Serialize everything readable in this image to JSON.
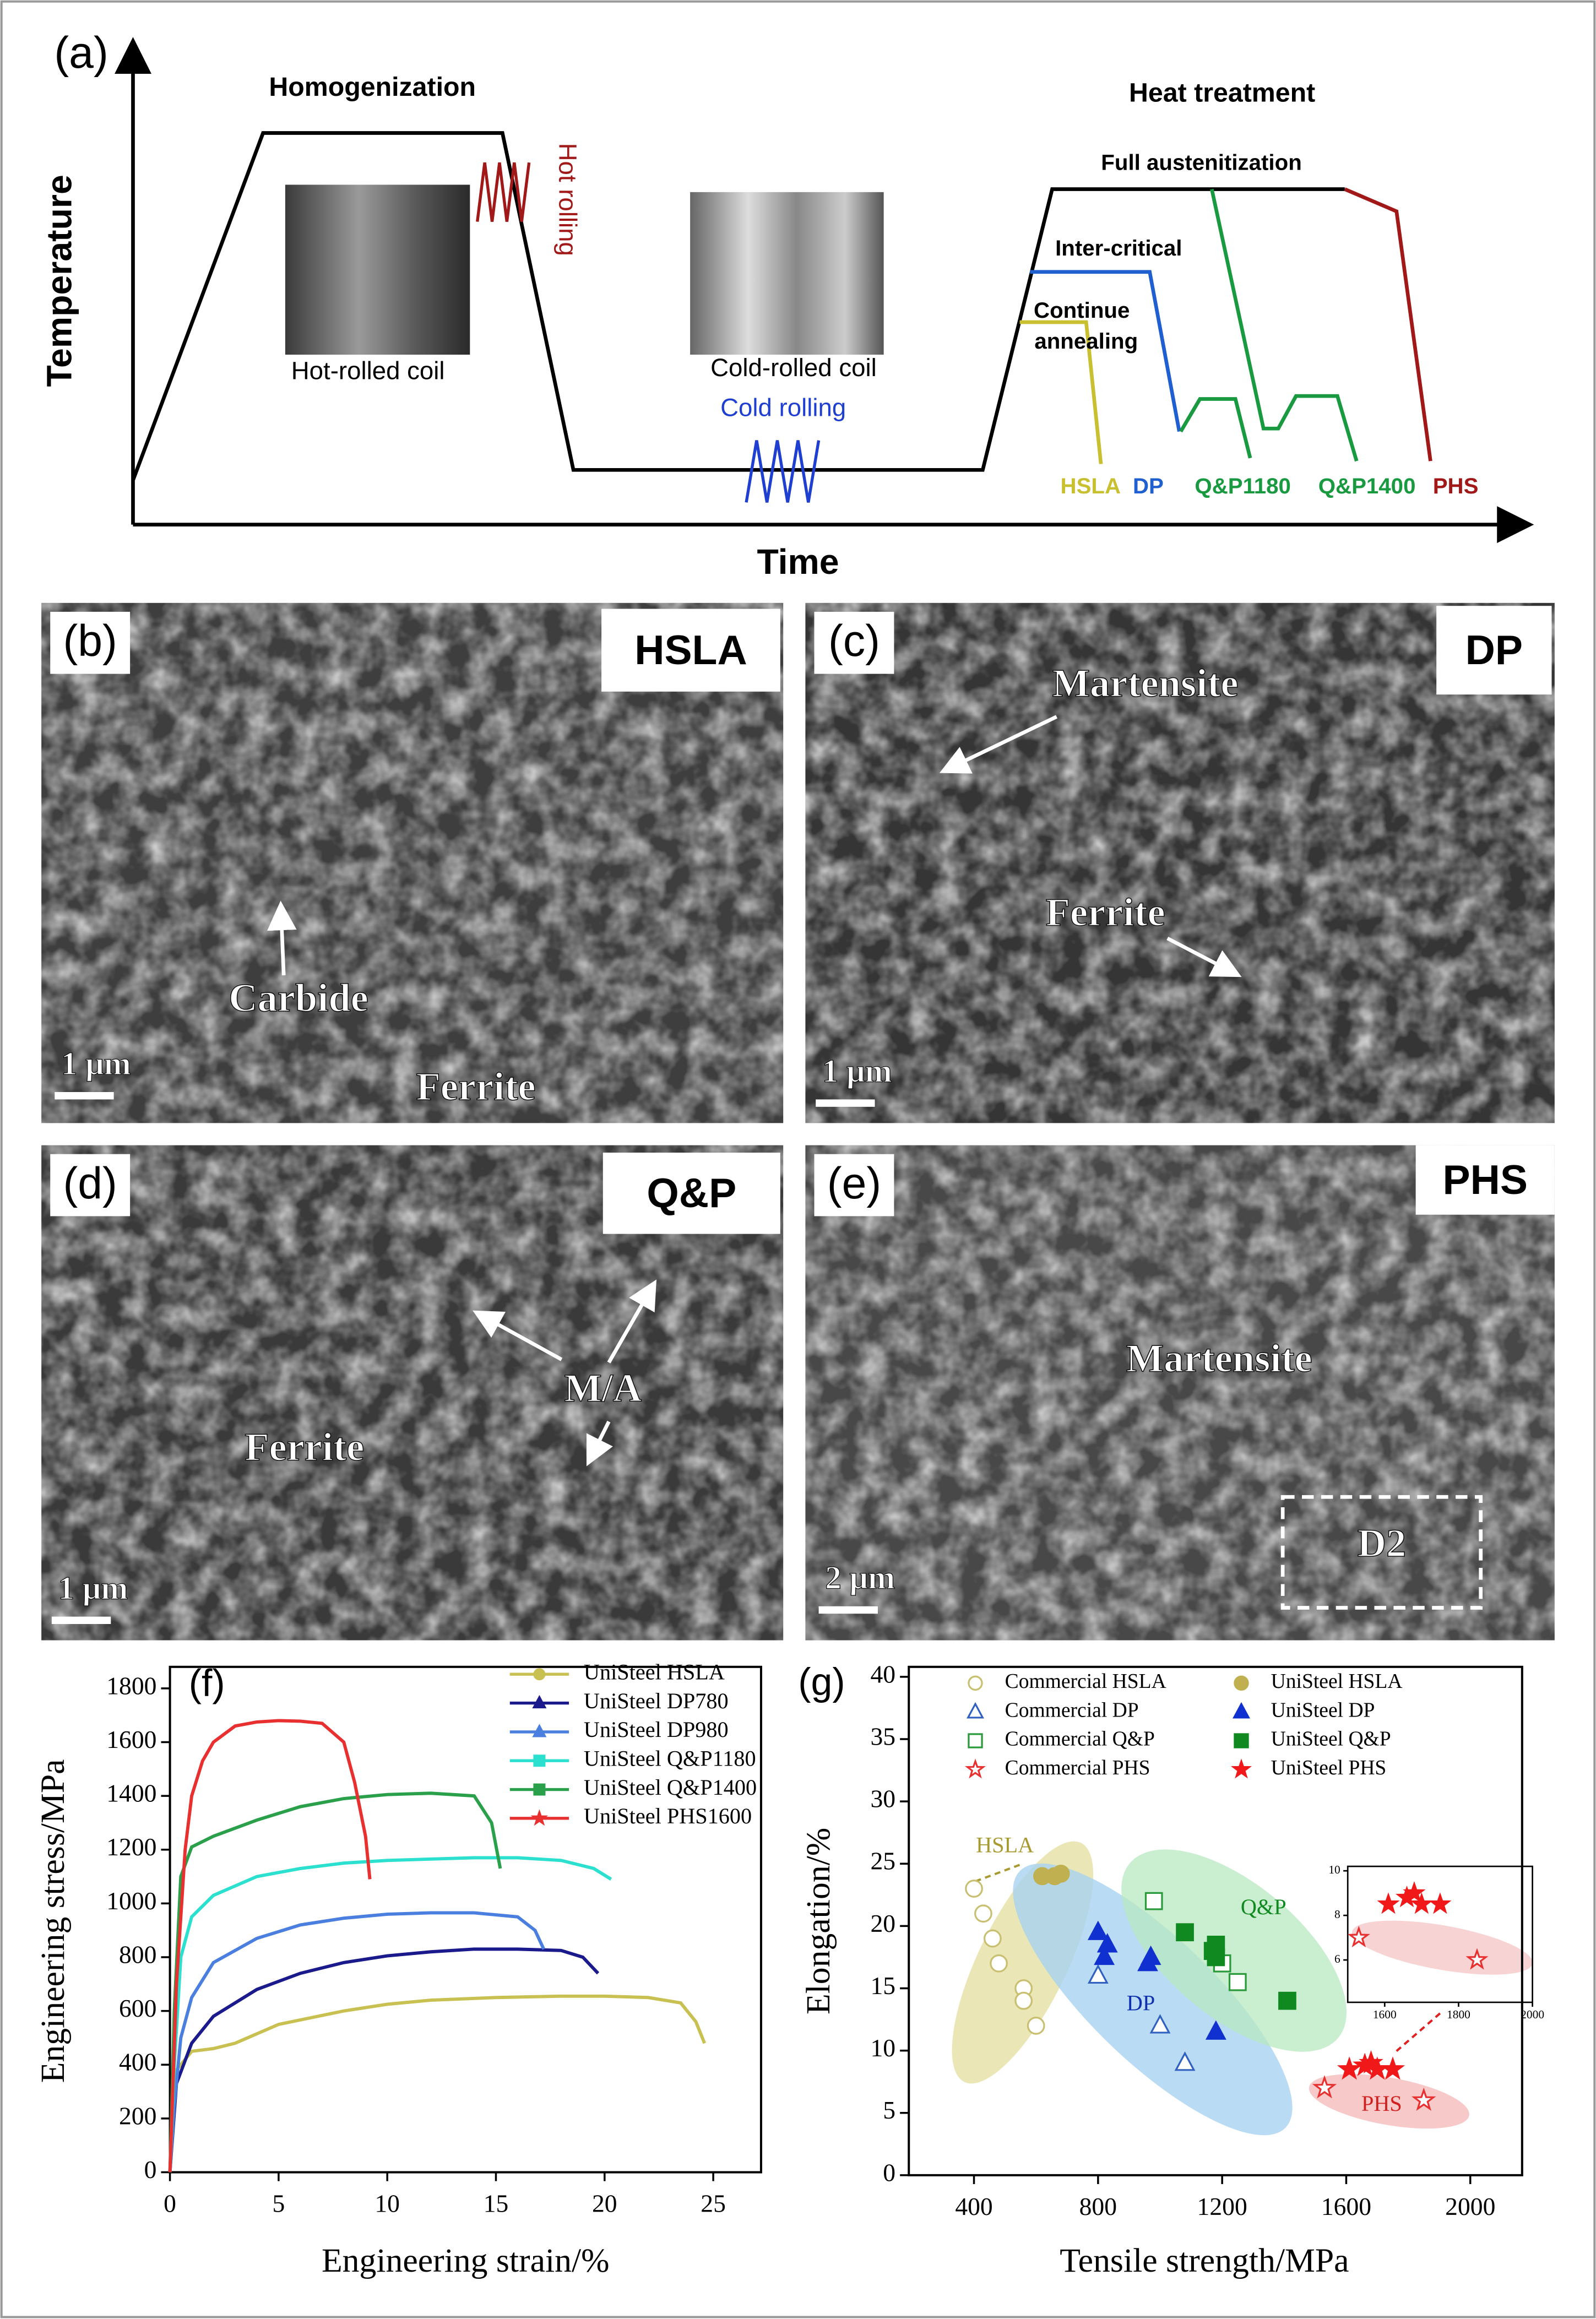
{
  "panel_a": {
    "label": "(a)",
    "y_axis_title": "Temperature",
    "x_axis_title": "Time",
    "homogenization": "Homogenization",
    "hot_rolling": "Hot rolling",
    "hot_coil": "Hot-rolled coil",
    "cold_coil": "Cold-rolled coil",
    "cold_rolling": "Cold rolling",
    "heat_treatment": "Heat treatment",
    "full_austenitization": "Full austenitization",
    "inter_critical": "Inter-critical",
    "continue_annealing": [
      "Continue",
      "annealing"
    ],
    "routes": [
      "HSLA",
      "DP",
      "Q&P1180",
      "Q&P1400",
      "PHS"
    ],
    "route_colors": [
      "#c8c030",
      "#1f5fd0",
      "#1a9a40",
      "#1a9a40",
      "#a01818"
    ]
  },
  "micrographs": [
    {
      "label": "(b)",
      "tag": "HSLA",
      "annotations": [
        "Carbide",
        "Ferrite"
      ],
      "scale_bar": "1 μm"
    },
    {
      "label": "(c)",
      "tag": "DP",
      "annotations": [
        "Martensite",
        "Ferrite"
      ],
      "scale_bar": "1 μm"
    },
    {
      "label": "(d)",
      "tag": "Q&P",
      "annotations": [
        "M/A",
        "Ferrite"
      ],
      "scale_bar": "1 μm"
    },
    {
      "label": "(e)",
      "tag": "PHS",
      "annotations": [
        "Martensite",
        "D2"
      ],
      "scale_bar": "2 μm"
    }
  ],
  "chart_data": [
    {
      "type": "line",
      "label": "(f)",
      "x_label": "Engineering strain/%",
      "y_label": "Engineering stress/MPa",
      "xlim": [
        0,
        27.2
      ],
      "ylim": [
        0,
        1880
      ],
      "xticks": [
        0,
        5,
        10,
        15,
        20,
        25
      ],
      "yticks": [
        0,
        200,
        400,
        600,
        800,
        1000,
        1200,
        1400,
        1600,
        1800
      ],
      "grid": false,
      "legend": "top-right",
      "series": [
        {
          "name": "UniSteel HSLA",
          "color": "#c8c050",
          "marker": "circle",
          "x": [
            0,
            0.3,
            1,
            2,
            3,
            5,
            8,
            10,
            12,
            15,
            18,
            20,
            22,
            23.5,
            24.2,
            24.6
          ],
          "values": [
            0,
            380,
            450,
            460,
            480,
            550,
            600,
            625,
            640,
            650,
            655,
            655,
            650,
            630,
            560,
            480
          ]
        },
        {
          "name": "UniSteel DP780",
          "color": "#1a1a8c",
          "marker": "triangle",
          "x": [
            0,
            0.3,
            1,
            2,
            4,
            6,
            8,
            10,
            12,
            14,
            16,
            18,
            19,
            19.7
          ],
          "values": [
            0,
            330,
            480,
            580,
            680,
            740,
            780,
            805,
            820,
            830,
            830,
            825,
            800,
            740
          ]
        },
        {
          "name": "UniSteel DP980",
          "color": "#4a7fe0",
          "marker": "triangle",
          "x": [
            0,
            0.2,
            0.5,
            1,
            2,
            4,
            6,
            8,
            10,
            12,
            14,
            16,
            16.8,
            17.2
          ],
          "values": [
            0,
            250,
            500,
            650,
            780,
            870,
            920,
            945,
            960,
            965,
            965,
            950,
            900,
            830
          ]
        },
        {
          "name": "UniSteel Q&P1180",
          "color": "#2ce0d0",
          "marker": "square",
          "x": [
            0,
            0.2,
            0.5,
            1,
            2,
            4,
            6,
            8,
            10,
            12,
            14,
            16,
            18,
            19.5,
            20.3
          ],
          "values": [
            0,
            400,
            800,
            950,
            1030,
            1100,
            1130,
            1150,
            1160,
            1165,
            1170,
            1170,
            1160,
            1130,
            1090
          ]
        },
        {
          "name": "UniSteel Q&P1400",
          "color": "#2aa04a",
          "marker": "square",
          "x": [
            0,
            0.2,
            0.5,
            1,
            2,
            4,
            6,
            8,
            10,
            12,
            14,
            14.8,
            15.2
          ],
          "values": [
            0,
            600,
            1100,
            1210,
            1250,
            1310,
            1360,
            1390,
            1405,
            1410,
            1400,
            1300,
            1130
          ]
        },
        {
          "name": "UniSteel PHS1600",
          "color": "#e83030",
          "marker": "star",
          "x": [
            0,
            0.3,
            0.7,
            1,
            1.5,
            2,
            3,
            4,
            5,
            6,
            7,
            8,
            8.5,
            9,
            9.2
          ],
          "values": [
            0,
            700,
            1200,
            1400,
            1530,
            1600,
            1660,
            1675,
            1680,
            1678,
            1670,
            1600,
            1450,
            1250,
            1090
          ]
        }
      ]
    },
    {
      "type": "scatter",
      "label": "(g)",
      "x_label": "Tensile strength/MPa",
      "y_label": "Elongation/%",
      "xlim": [
        190,
        2167
      ],
      "ylim": [
        0,
        40.8
      ],
      "xticks": [
        400,
        800,
        1200,
        1600,
        2000
      ],
      "yticks": [
        0,
        5,
        10,
        15,
        20,
        25,
        30,
        35,
        40
      ],
      "grid": false,
      "legend": "top",
      "series": [
        {
          "name": "Commercial HSLA",
          "color": "#c8c070",
          "marker": "circle",
          "filled": false,
          "x": [
            400,
            430,
            460,
            480,
            560,
            560,
            600
          ],
          "values": [
            23,
            21,
            19,
            17,
            15,
            14,
            12
          ]
        },
        {
          "name": "Commercial DP",
          "color": "#3060c0",
          "marker": "triangle",
          "filled": false,
          "x": [
            800,
            1000,
            1080
          ],
          "values": [
            16,
            12,
            9
          ]
        },
        {
          "name": "Commercial Q&P",
          "color": "#2a9a3a",
          "marker": "square",
          "filled": false,
          "x": [
            980,
            1200,
            1250
          ],
          "values": [
            22,
            17,
            15.5
          ]
        },
        {
          "name": "Commercial PHS",
          "color": "#e83030",
          "marker": "star",
          "filled": false,
          "x": [
            1530,
            1850
          ],
          "values": [
            7,
            6
          ]
        },
        {
          "name": "UniSteel HSLA",
          "color": "#c0b050",
          "marker": "circle",
          "filled": true,
          "x": [
            620,
            660,
            680
          ],
          "values": [
            24,
            24,
            24.2
          ]
        },
        {
          "name": "UniSteel DP",
          "color": "#1030d0",
          "marker": "triangle",
          "filled": true,
          "x": [
            800,
            820,
            830,
            960,
            970,
            1180
          ],
          "values": [
            19.5,
            17.5,
            18.5,
            17,
            17.5,
            11.5
          ]
        },
        {
          "name": "UniSteel Q&P",
          "color": "#108a20",
          "marker": "square",
          "filled": true,
          "x": [
            1080,
            1170,
            1180,
            1180,
            1410
          ],
          "values": [
            19.5,
            18,
            18.5,
            17.5,
            14
          ]
        },
        {
          "name": "UniSteel PHS",
          "color": "#f01818",
          "marker": "star",
          "filled": true,
          "x": [
            1610,
            1660,
            1680,
            1700,
            1750
          ],
          "values": [
            8.5,
            8.8,
            9,
            8.5,
            8.5
          ]
        }
      ],
      "annotations": [
        {
          "text": "HSLA",
          "color": "#a89a30"
        },
        {
          "text": "DP",
          "color": "#1030b0"
        },
        {
          "text": "Q&P",
          "color": "#108a20"
        },
        {
          "text": "PHS",
          "color": "#d02020"
        }
      ],
      "inset": {
        "xlim": [
          1500,
          2000
        ],
        "ylim": [
          4.1,
          10.2
        ],
        "xticks": [
          1600,
          1800,
          2000
        ],
        "yticks": [
          6,
          8,
          10
        ]
      }
    }
  ]
}
